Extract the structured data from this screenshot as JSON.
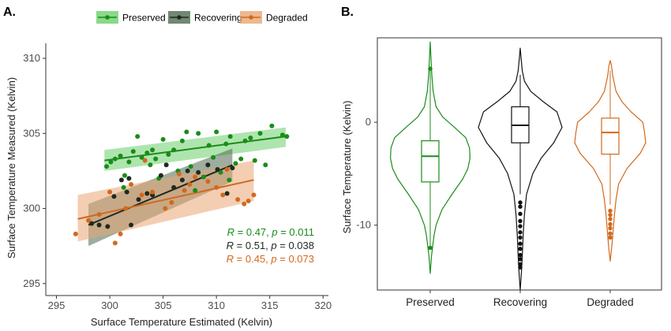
{
  "chart_data": [
    {
      "panel": "A.",
      "type": "scatter",
      "xlabel": "Surface Temperature Estimated (Kelvin)",
      "ylabel": "Surface Temperature Measured (Kelvin)",
      "xlim": [
        294,
        320.5
      ],
      "ylim": [
        294.2,
        311
      ],
      "xticks": [
        295,
        300,
        305,
        310,
        315,
        320
      ],
      "yticks": [
        295,
        300,
        305,
        310
      ],
      "grid": false,
      "legend": {
        "placement": "top"
      },
      "series": [
        {
          "name": "Preserved",
          "color": "#1a8c1a",
          "band_color": "#6ccf6c",
          "fit": {
            "x": [
              299.5,
              316.5
            ],
            "y": [
              303.2,
              304.8
            ],
            "band_upper": [
              303.9,
              305.4
            ],
            "band_lower": [
              302.5,
              304.1
            ]
          },
          "stats": {
            "R": "0.47",
            "p": "0.011"
          },
          "points": [
            [
              299.7,
              302.8
            ],
            [
              300.1,
              303.1
            ],
            [
              300.5,
              303.3
            ],
            [
              301.0,
              303.5
            ],
            [
              301.4,
              302.2
            ],
            [
              301.8,
              303.1
            ],
            [
              302.2,
              303.8
            ],
            [
              302.6,
              304.8
            ],
            [
              303.0,
              303.4
            ],
            [
              303.5,
              303.7
            ],
            [
              303.8,
              302.9
            ],
            [
              304.0,
              303.9
            ],
            [
              304.3,
              303.3
            ],
            [
              304.6,
              302.0
            ],
            [
              305.0,
              304.6
            ],
            [
              305.5,
              303.6
            ],
            [
              306.0,
              303.9
            ],
            [
              306.4,
              302.5
            ],
            [
              306.8,
              304.5
            ],
            [
              307.2,
              305.1
            ],
            [
              307.6,
              302.8
            ],
            [
              308.0,
              301.2
            ],
            [
              308.3,
              305.0
            ],
            [
              308.8,
              302.1
            ],
            [
              309.3,
              304.2
            ],
            [
              309.7,
              303.4
            ],
            [
              310.0,
              305.1
            ],
            [
              310.4,
              302.4
            ],
            [
              310.9,
              304.3
            ],
            [
              311.3,
              304.8
            ],
            [
              311.8,
              303.0
            ],
            [
              312.3,
              303.3
            ],
            [
              312.7,
              304.5
            ],
            [
              313.2,
              304.7
            ],
            [
              313.6,
              303.2
            ],
            [
              314.1,
              305.0
            ],
            [
              314.6,
              302.9
            ],
            [
              315.2,
              305.5
            ],
            [
              316.2,
              304.9
            ],
            [
              316.6,
              304.8
            ],
            [
              301.3,
              301.4
            ],
            [
              311.2,
              301.9
            ]
          ]
        },
        {
          "name": "Recovering",
          "color": "#1f2a1f",
          "band_color": "#4f6a4f",
          "fit": {
            "x": [
              298.0,
              311.5
            ],
            "y": [
              298.9,
              302.9
            ],
            "band_upper": [
              300.3,
              304.0
            ],
            "band_lower": [
              297.5,
              301.8
            ]
          },
          "stats": {
            "R": "0.51",
            "p": "0.038"
          },
          "points": [
            [
              298.3,
              299.0
            ],
            [
              299.0,
              298.9
            ],
            [
              299.8,
              298.8
            ],
            [
              300.4,
              300.8
            ],
            [
              301.1,
              301.9
            ],
            [
              301.6,
              301.1
            ],
            [
              302.0,
              298.9
            ],
            [
              302.7,
              300.6
            ],
            [
              303.5,
              301.0
            ],
            [
              304.0,
              300.9
            ],
            [
              304.8,
              302.2
            ],
            [
              305.3,
              302.9
            ],
            [
              306.0,
              301.4
            ],
            [
              306.8,
              301.9
            ],
            [
              307.3,
              302.5
            ],
            [
              308.3,
              302.4
            ],
            [
              309.2,
              302.9
            ],
            [
              310.1,
              302.6
            ],
            [
              311.0,
              301.0
            ],
            [
              311.5,
              302.7
            ],
            [
              301.8,
              302.0
            ]
          ]
        },
        {
          "name": "Degraded",
          "color": "#d2691e",
          "band_color": "#e9a574",
          "fit": {
            "x": [
              297.0,
              313.5
            ],
            "y": [
              299.3,
              301.9
            ],
            "band_upper": [
              300.9,
              303.2
            ],
            "band_lower": [
              297.8,
              300.5
            ]
          },
          "stats": {
            "R": "0.45",
            "p": "0.073"
          },
          "points": [
            [
              296.8,
              298.3
            ],
            [
              298.0,
              299.2
            ],
            [
              299.0,
              299.6
            ],
            [
              300.0,
              301.1
            ],
            [
              300.5,
              297.7
            ],
            [
              301.0,
              298.3
            ],
            [
              301.5,
              300.0
            ],
            [
              302.0,
              301.6
            ],
            [
              303.0,
              300.9
            ],
            [
              303.3,
              303.2
            ],
            [
              304.0,
              301.1
            ],
            [
              305.2,
              300.0
            ],
            [
              305.8,
              300.4
            ],
            [
              306.5,
              302.3
            ],
            [
              307.0,
              301.2
            ],
            [
              307.5,
              301.6
            ],
            [
              308.0,
              302.1
            ],
            [
              309.2,
              301.8
            ],
            [
              310.0,
              301.4
            ],
            [
              311.0,
              302.6
            ],
            [
              312.0,
              300.6
            ],
            [
              313.0,
              300.5
            ],
            [
              313.5,
              300.9
            ],
            [
              310.6,
              300.9
            ],
            [
              312.6,
              300.3
            ]
          ]
        }
      ]
    },
    {
      "panel": "B.",
      "type": "violin",
      "ylabel": "Surface Temperature (Kelvin)",
      "ylim": [
        -16.3,
        8.2
      ],
      "yticks": [
        -10,
        0
      ],
      "categories": [
        "Preserved",
        "Recovering",
        "Degraded"
      ],
      "grid": false,
      "groups": [
        {
          "name": "Preserved",
          "color": "#1a8c1a",
          "box": {
            "q1": -5.8,
            "median": -3.3,
            "q3": -1.8,
            "whisker_low": -12.0,
            "whisker_high": 5.3
          },
          "outliers": [
            5.2,
            -12.2
          ],
          "density_y": [
            -14.7,
            -13.0,
            -12.0,
            -11.0,
            -10.0,
            -8.5,
            -7.0,
            -5.5,
            -4.5,
            -3.5,
            -2.5,
            -1.5,
            -0.5,
            0.5,
            1.5,
            3.0,
            4.5,
            6.0,
            7.8
          ],
          "density_width": [
            0.0,
            0.03,
            0.06,
            0.09,
            0.14,
            0.28,
            0.52,
            0.78,
            0.9,
            0.95,
            0.94,
            0.85,
            0.58,
            0.3,
            0.14,
            0.07,
            0.04,
            0.02,
            0.0
          ]
        },
        {
          "name": "Recovering",
          "color": "#111111",
          "box": {
            "q1": -2.0,
            "median": -0.3,
            "q3": 1.5,
            "whisker_low": -7.0,
            "whisker_high": 4.6
          },
          "outliers": [
            -7.8,
            -8.2,
            -8.9,
            -9.6,
            -10.1,
            -10.7,
            -11.2,
            -11.8,
            -12.3,
            -12.9,
            -13.3,
            -13.8,
            -14.1
          ],
          "density_y": [
            -16.3,
            -14.5,
            -13.0,
            -11.0,
            -9.0,
            -7.0,
            -5.0,
            -3.5,
            -2.0,
            -0.5,
            1.0,
            2.0,
            3.0,
            4.0,
            5.0,
            6.2,
            7.2
          ],
          "density_width": [
            0.0,
            0.03,
            0.05,
            0.07,
            0.1,
            0.15,
            0.3,
            0.5,
            0.8,
            1.0,
            0.88,
            0.55,
            0.25,
            0.1,
            0.05,
            0.02,
            0.0
          ]
        },
        {
          "name": "Degraded",
          "color": "#d2691e",
          "box": {
            "q1": -3.1,
            "median": -1.0,
            "q3": 0.4,
            "whisker_low": -8.0,
            "whisker_high": 5.0
          },
          "outliers": [
            -8.6,
            -9.0,
            -9.4,
            -9.9,
            -10.3,
            -10.8,
            -11.2
          ],
          "density_y": [
            -13.5,
            -12.0,
            -10.5,
            -9.0,
            -7.5,
            -6.0,
            -4.5,
            -3.0,
            -2.0,
            -1.0,
            0.0,
            1.0,
            2.0,
            3.0,
            4.5,
            5.5,
            6.0
          ],
          "density_width": [
            0.0,
            0.04,
            0.07,
            0.1,
            0.14,
            0.2,
            0.4,
            0.72,
            0.85,
            0.82,
            0.78,
            0.5,
            0.28,
            0.14,
            0.06,
            0.03,
            0.0
          ]
        }
      ]
    }
  ]
}
